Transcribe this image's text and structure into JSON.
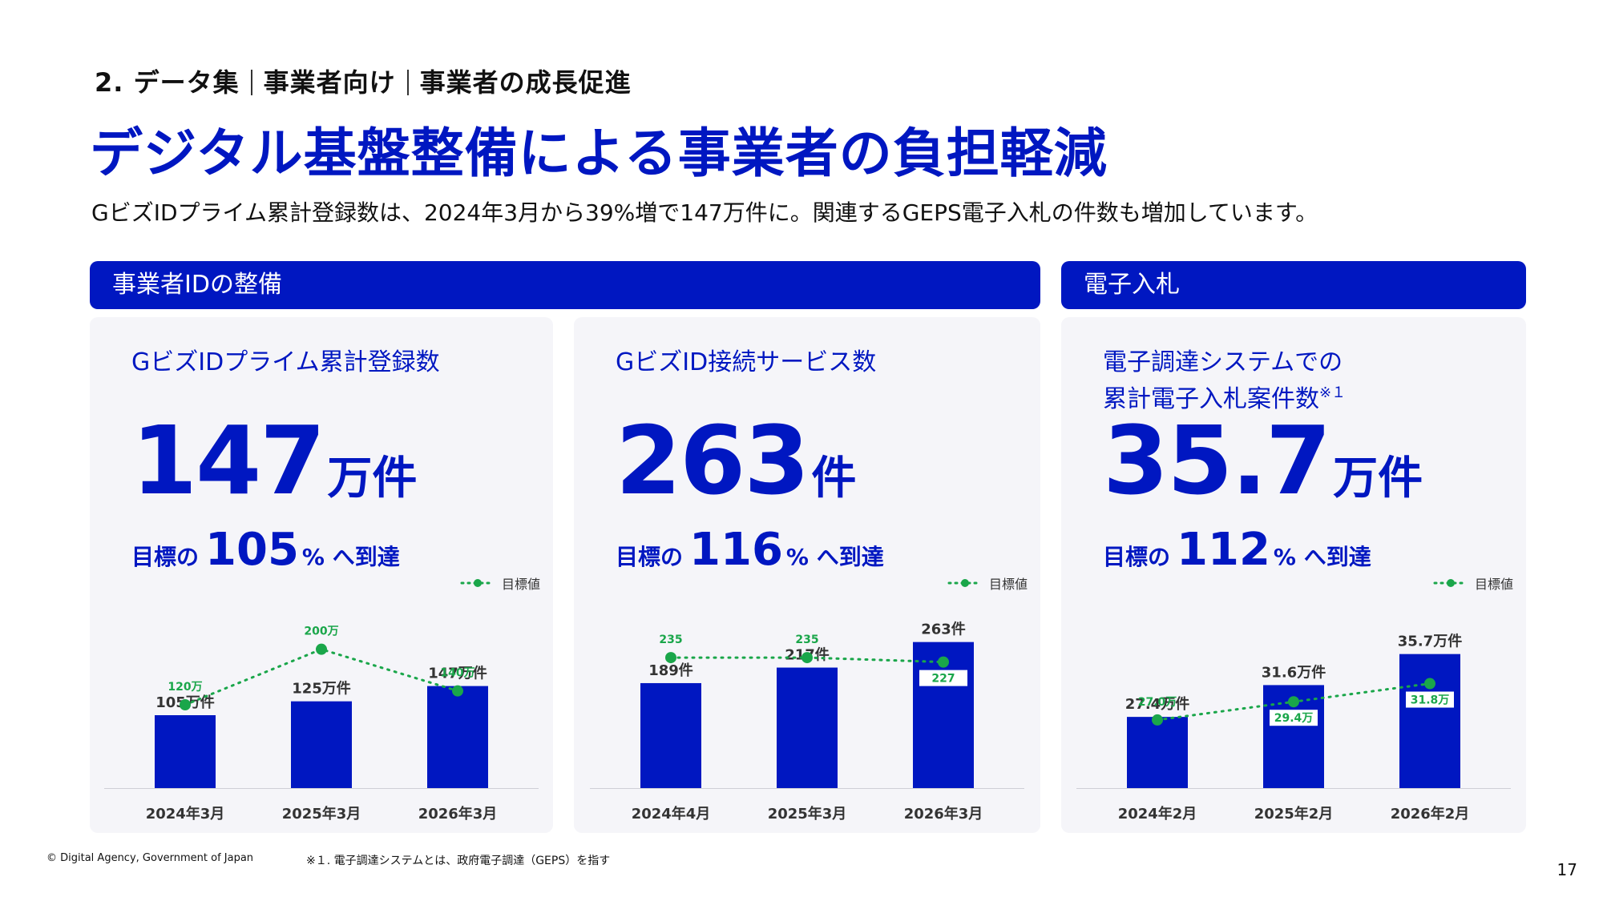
{
  "header": {
    "breadcrumb": [
      "2. データ集",
      "事業者向け",
      "事業者の成長促進"
    ],
    "title": "デジタル基盤整備による事業者の負担軽減",
    "subtitle": "GビズIDプライム累計登録数は、2024年3月から39%増で147万件に。関連するGEPS電子入札の件数も増加しています。"
  },
  "sections": {
    "left_label": "事業者IDの整備",
    "right_label": "電子入札"
  },
  "legend_label": "目標値",
  "cards": [
    {
      "title": "GビズIDプライム累計登録数",
      "big_number": "147",
      "big_unit": "万件",
      "target_prefix": "目標の",
      "target_pct": "105",
      "target_suffix": "% へ到達"
    },
    {
      "title": "GビズID接続サービス数",
      "big_number": "263",
      "big_unit": "件",
      "target_prefix": "目標の",
      "target_pct": "116",
      "target_suffix": "% へ到達"
    },
    {
      "title_line1": "電子調達システムでの",
      "title_line2": "累計電子入札案件数",
      "title_note": "※１",
      "big_number": "35.7",
      "big_unit": "万件",
      "target_prefix": "目標の",
      "target_pct": "112",
      "target_suffix": "% へ到達"
    }
  ],
  "chart_data": [
    {
      "type": "bar",
      "categories": [
        "2024年3月",
        "2025年3月",
        "2026年3月"
      ],
      "series": [
        {
          "values": [
            105,
            125,
            147
          ],
          "labels": [
            "105万件",
            "125万件",
            "147万件"
          ],
          "color": "#0017c1"
        },
        {
          "name": "目標値",
          "values": [
            120,
            200,
            140
          ],
          "labels": [
            "120万",
            "200万",
            "140万"
          ],
          "color": "#1aa64a",
          "style": "dotted-line"
        }
      ],
      "ylim": [
        0,
        240
      ],
      "grid": false,
      "legend": "top-right"
    },
    {
      "type": "bar",
      "categories": [
        "2024年4月",
        "2025年3月",
        "2026年3月"
      ],
      "series": [
        {
          "values": [
            189,
            217,
            263
          ],
          "labels": [
            "189件",
            "217件",
            "263件"
          ],
          "color": "#0017c1"
        },
        {
          "name": "目標値",
          "values": [
            235,
            235,
            227
          ],
          "labels": [
            "235",
            "235",
            "227"
          ],
          "color": "#1aa64a",
          "style": "dotted-line"
        }
      ],
      "ylim": [
        0,
        300
      ],
      "grid": false,
      "legend": "top-right"
    },
    {
      "type": "bar",
      "categories": [
        "2024年2月",
        "2025年2月",
        "2026年2月"
      ],
      "series": [
        {
          "values": [
            27.4,
            31.6,
            35.7
          ],
          "labels": [
            "27.4万件",
            "31.6万件",
            "35.7万件"
          ],
          "color": "#0017c1"
        },
        {
          "name": "目標値",
          "values": [
            27.0,
            29.4,
            31.8
          ],
          "labels": [
            "27.0万",
            "29.4万",
            "31.8万"
          ],
          "color": "#1aa64a",
          "style": "dotted-line"
        }
      ],
      "ylim": [
        18,
        40
      ],
      "grid": false,
      "legend": "top-right"
    }
  ],
  "footer": {
    "copyright": "© Digital Agency, Government of Japan",
    "note": "※１. 電子調達システムとは、政府電子調達（GEPS）を指す",
    "page_number": "17"
  }
}
